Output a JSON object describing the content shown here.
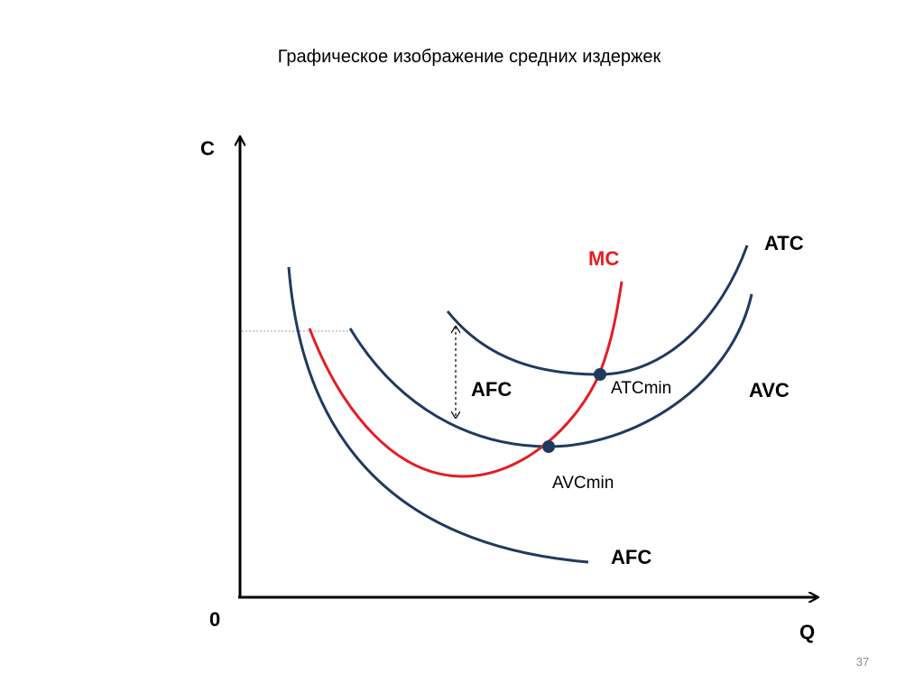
{
  "slide": {
    "title": "Графическое изображение средних издержек",
    "page_number": "37"
  },
  "axes": {
    "y_label": "С",
    "x_label": "Q",
    "origin_label": "0"
  },
  "curves": {
    "atc_label": "ATC",
    "avc_label": "AVC",
    "afc_label": "AFC",
    "mc_label": "MC",
    "afc_gap_label": "AFC"
  },
  "points": {
    "atc_min_label": "ATCmin",
    "avc_min_label": "AVCmin"
  },
  "colors": {
    "curve_navy": "#1f3a5f",
    "curve_red": "#e31e24",
    "axis": "#000000",
    "guide": "#a0a0a0"
  }
}
